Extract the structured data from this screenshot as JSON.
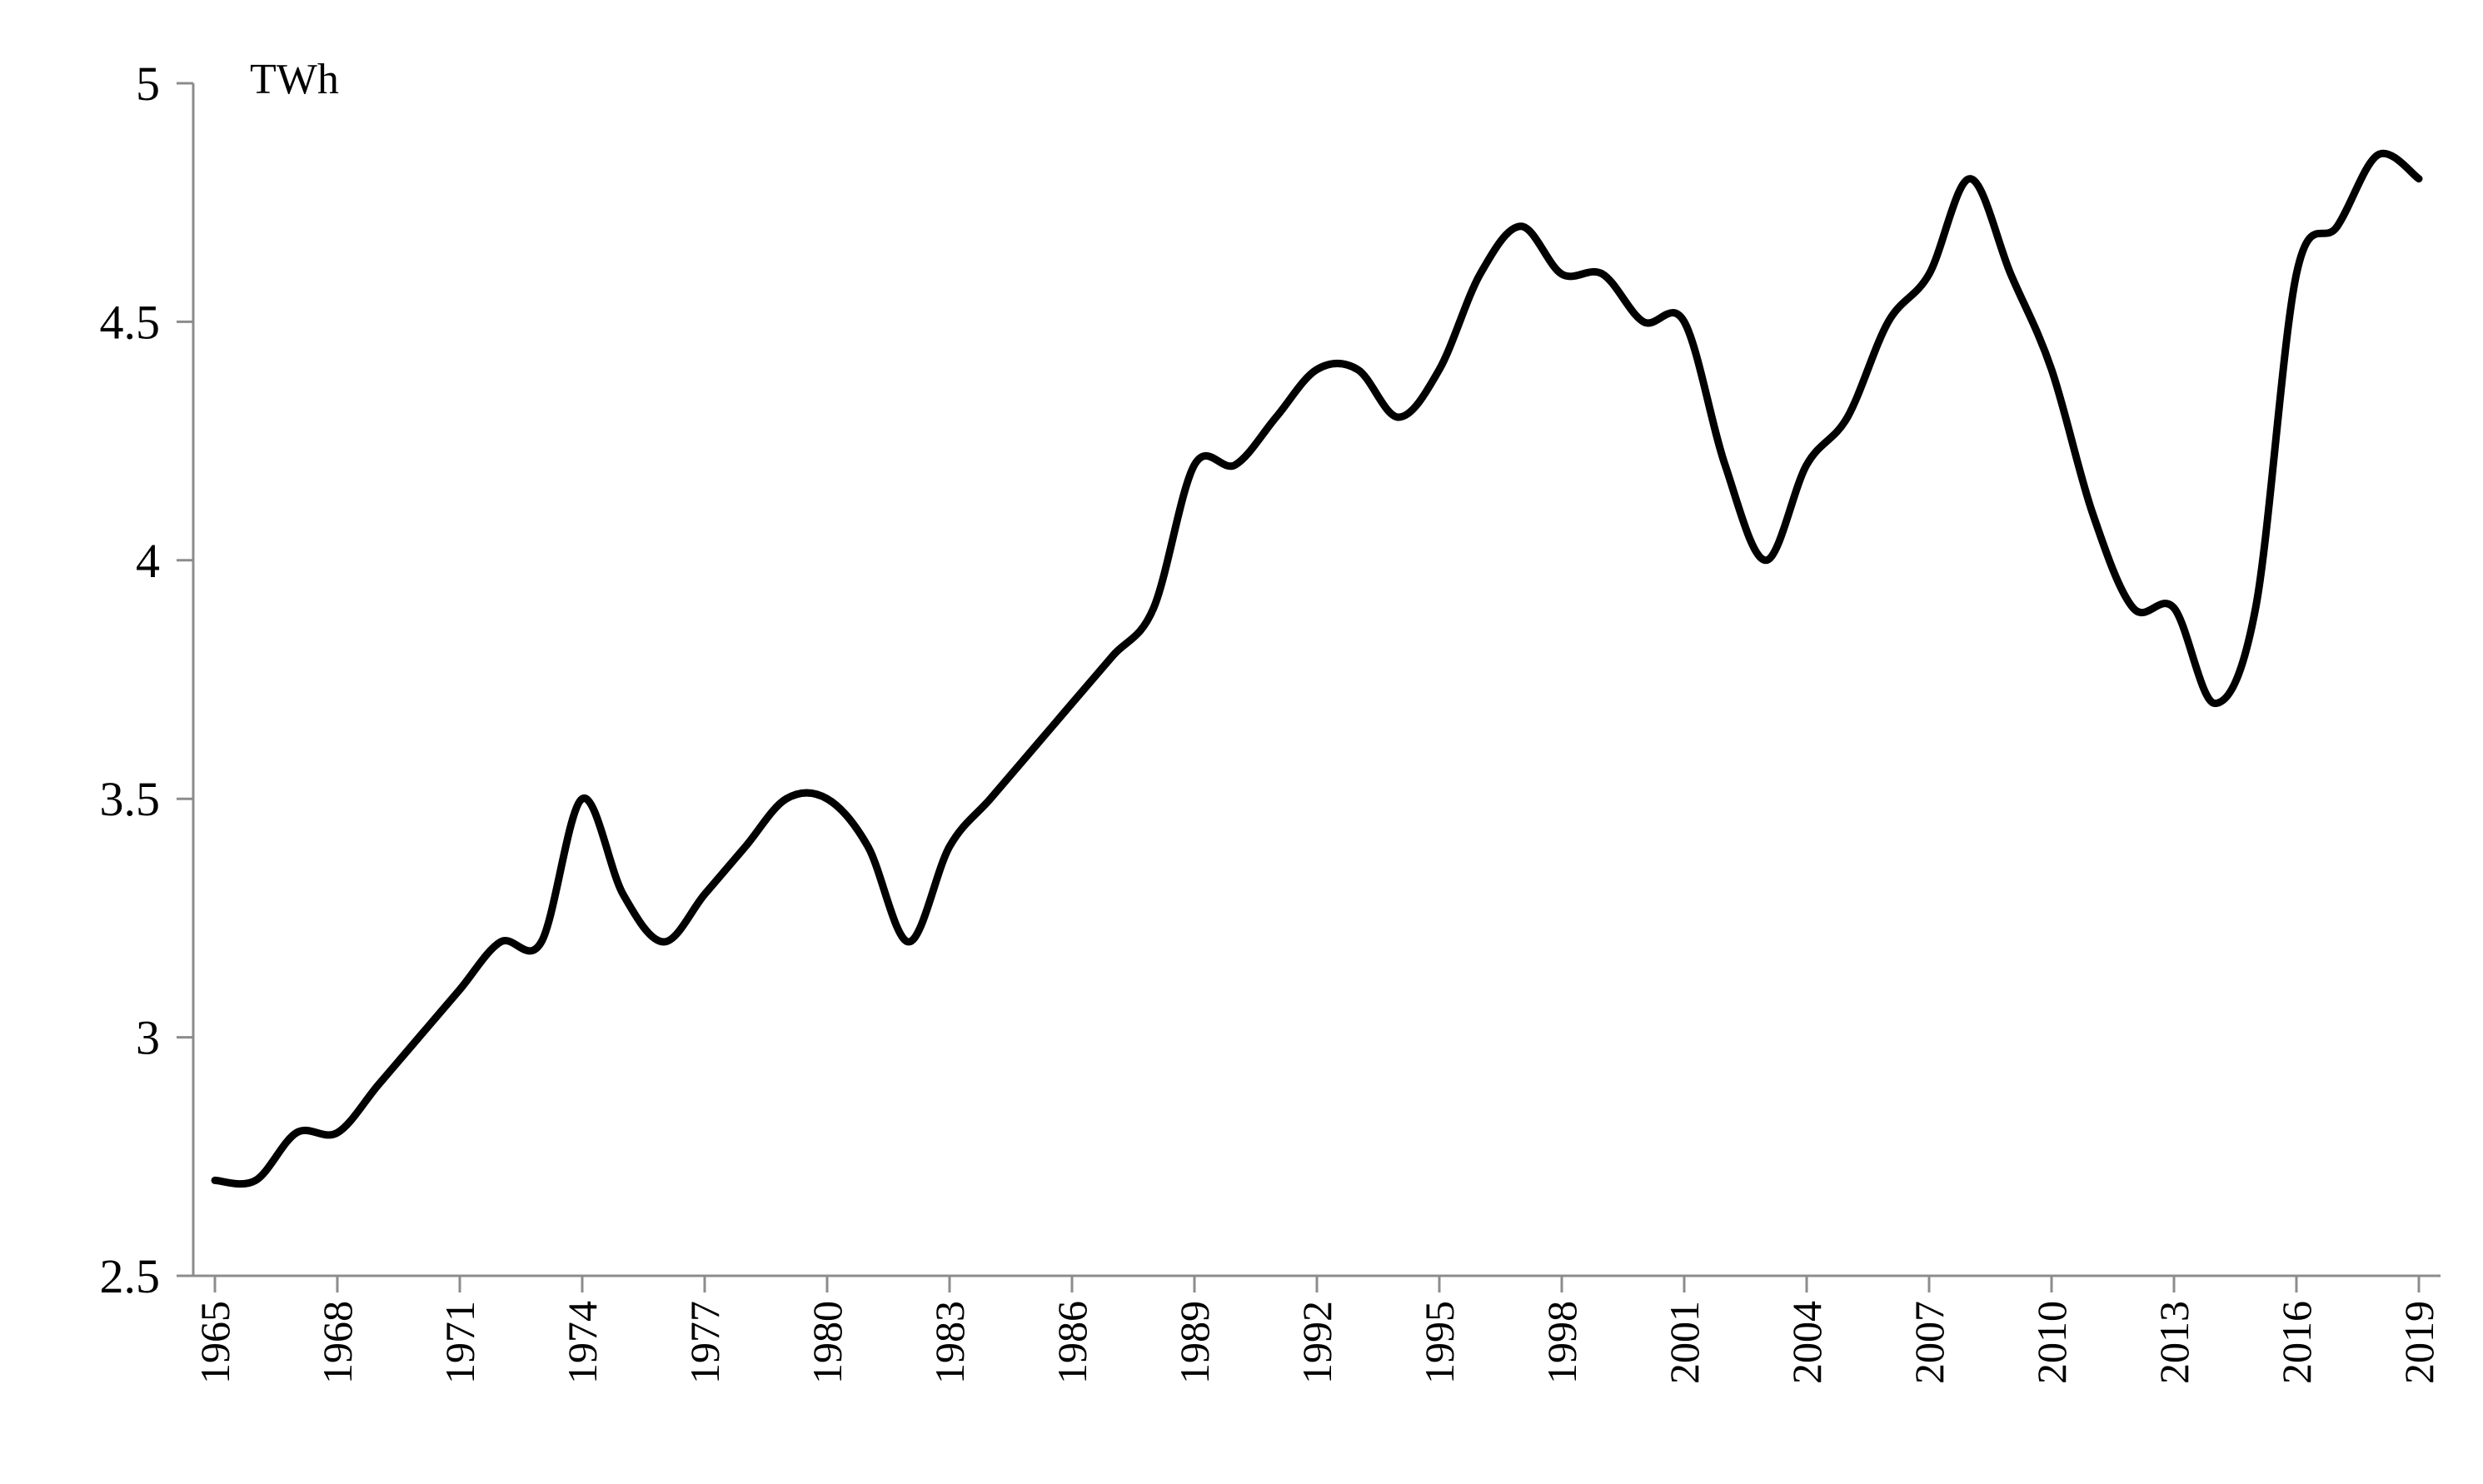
{
  "chart_data": {
    "type": "line",
    "ylabel": "TWh",
    "ylim": [
      2.5,
      5
    ],
    "xlim": [
      1965,
      2019
    ],
    "yticks": [
      "2.5",
      "3",
      "3.5",
      "4",
      "4.5",
      "5"
    ],
    "xticks": [
      "1965",
      "1968",
      "1971",
      "1974",
      "1977",
      "1980",
      "1983",
      "1986",
      "1989",
      "1992",
      "1995",
      "1998",
      "2001",
      "2004",
      "2007",
      "2010",
      "2013",
      "2016",
      "2019"
    ],
    "grid": false,
    "line_color": "#000000",
    "series": [
      {
        "x": [
          1965,
          1966,
          1967,
          1968,
          1969,
          1970,
          1971,
          1972,
          1973,
          1974,
          1975,
          1976,
          1977,
          1978,
          1979,
          1980,
          1981,
          1982,
          1983,
          1984,
          1985,
          1986,
          1987,
          1988,
          1989,
          1990,
          1991,
          1992,
          1993,
          1994,
          1995,
          1996,
          1997,
          1998,
          1999,
          2000,
          2001,
          2002,
          2003,
          2004,
          2005,
          2006,
          2007,
          2008,
          2009,
          2010,
          2011,
          2012,
          2013,
          2014,
          2015,
          2016,
          2017,
          2018,
          2019
        ],
        "values": [
          2.7,
          2.7,
          2.8,
          2.8,
          2.9,
          3.0,
          3.1,
          3.2,
          3.2,
          3.5,
          3.3,
          3.2,
          3.3,
          3.4,
          3.5,
          3.5,
          3.4,
          3.2,
          3.4,
          3.5,
          3.6,
          3.7,
          3.8,
          3.9,
          4.2,
          4.2,
          4.3,
          4.4,
          4.4,
          4.3,
          4.4,
          4.6,
          4.7,
          4.6,
          4.6,
          4.5,
          4.5,
          4.2,
          4.0,
          4.2,
          4.3,
          4.5,
          4.6,
          4.8,
          4.6,
          4.4,
          4.1,
          3.9,
          3.9,
          3.7,
          3.9,
          4.6,
          4.7,
          4.85,
          4.8
        ]
      }
    ]
  }
}
